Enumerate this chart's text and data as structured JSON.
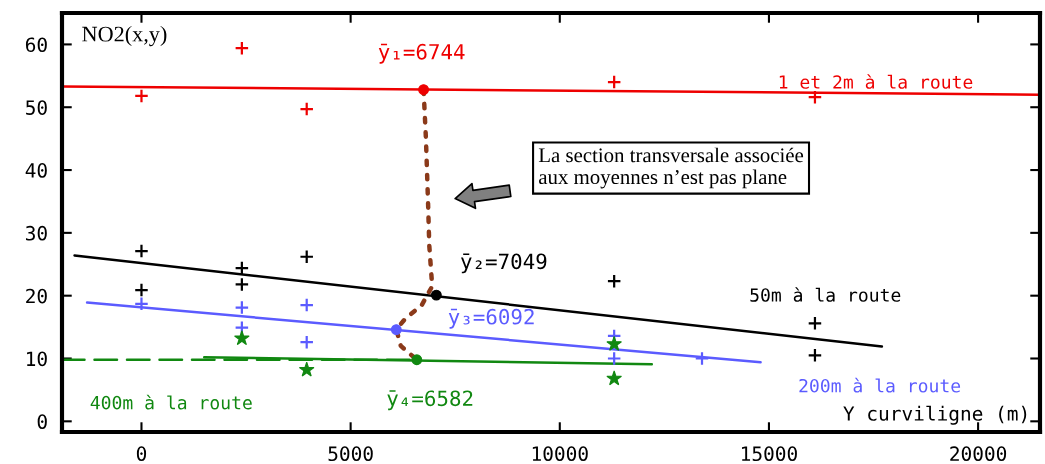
{
  "chart_data": {
    "type": "scatter",
    "xlabel": "Y curviligne (m)",
    "ylabel": "NO2(x,y)",
    "xlim": [
      -1900,
      21480
    ],
    "ylim": [
      -1.7,
      65
    ],
    "xticks": [
      0,
      5000,
      10000,
      15000,
      20000
    ],
    "yticks": [
      0,
      10,
      20,
      30,
      40,
      50,
      60
    ],
    "grid": false,
    "annotations": [
      "La section transversale associée\naux moyennes n’est pas plane",
      {
        "text": "ȳ₁=6744",
        "x": 6744,
        "y": 52.8
      },
      {
        "text": "ȳ₂=7049",
        "x": 7049,
        "y": 20.1
      },
      {
        "text": "ȳ₃=6092",
        "x": 6092,
        "y": 14.6
      },
      {
        "text": "ȳ₄=6582",
        "x": 6582,
        "y": 9.8
      }
    ],
    "series": [
      {
        "color": "#ee0000",
        "marker": "cross",
        "x": [
          0,
          2400,
          3950,
          11300,
          16100
        ],
        "values": [
          51.8,
          59.4,
          49.7,
          54.0,
          51.6
        ]
      },
      {
        "type": "line",
        "name": "1 et 2m à la route",
        "color": "#ee0000",
        "x": [
          -1900,
          21480
        ],
        "values": [
          53.3,
          52.0
        ]
      },
      {
        "color": "#000000",
        "marker": "cross",
        "x": [
          0,
          0,
          2400,
          2400,
          3950,
          11300,
          16100,
          16100
        ],
        "values": [
          27.1,
          20.9,
          24.4,
          21.8,
          26.2,
          22.3,
          15.6,
          10.5
        ]
      },
      {
        "type": "line",
        "name": "50m à la route",
        "color": "#000000",
        "x": [
          -1600,
          17700
        ],
        "values": [
          26.4,
          11.9
        ]
      },
      {
        "color": "#5b5bff",
        "marker": "cross",
        "x": [
          0,
          2400,
          2400,
          3950,
          3950,
          11300,
          11300,
          13400
        ],
        "values": [
          18.7,
          18.1,
          14.9,
          18.5,
          12.6,
          13.6,
          10.0,
          10.0
        ]
      },
      {
        "type": "line",
        "name": "200m à la route",
        "color": "#5b5bff",
        "x": [
          -1300,
          14800
        ],
        "values": [
          18.9,
          9.4
        ]
      },
      {
        "color": "#118811",
        "marker": "star",
        "x": [
          2400,
          3950,
          11300,
          11300
        ],
        "values": [
          13.2,
          8.2,
          12.3,
          6.8
        ]
      },
      {
        "type": "line",
        "color": "#118811",
        "line_style": "solid",
        "x": [
          1500,
          12200
        ],
        "values": [
          10.2,
          9.1
        ]
      },
      {
        "type": "line",
        "name": "400m à la route",
        "color": "#118811",
        "line_style": "dashed",
        "x": [
          -1900,
          6500
        ],
        "values": [
          9.8,
          9.8
        ]
      },
      {
        "type": "line",
        "color": "#8b3a1a",
        "line_style": "dotted",
        "x": [
          6744,
          6800,
          6850,
          6880,
          6950,
          6700,
          6300,
          6092,
          6200,
          6582
        ],
        "values": [
          52.8,
          45,
          35,
          28,
          21.5,
          18.5,
          16.3,
          14.6,
          12,
          9.8
        ]
      },
      {
        "colors": [
          "#ee0000",
          "#000000",
          "#5b5bff",
          "#118811"
        ],
        "marker": "circle",
        "x": [
          6744,
          7049,
          6092,
          6582
        ],
        "values": [
          52.8,
          20.1,
          14.6,
          9.8
        ]
      }
    ]
  }
}
